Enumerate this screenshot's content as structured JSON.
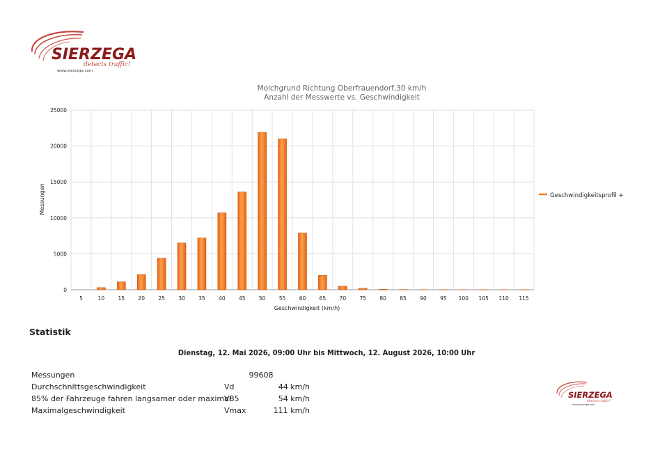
{
  "brand": {
    "name": "SIERZEGA",
    "tagline": "detects traffic!",
    "url": "www.sierzega.com",
    "color_dark": "#8b1a1a",
    "color_light": "#c4483c"
  },
  "chart_data": {
    "type": "bar",
    "title": "Molchgrund Richtung Oberfrauendorf,30 km/h",
    "subtitle": "Anzahl der Messwerte vs. Geschwindigkeit",
    "xlabel": "Geschwindigkeit (km/h)",
    "ylabel": "Messungen",
    "categories": [
      "5",
      "10",
      "15",
      "20",
      "25",
      "30",
      "35",
      "40",
      "45",
      "50",
      "55",
      "60",
      "65",
      "70",
      "75",
      "80",
      "85",
      "90",
      "95",
      "100",
      "105",
      "110",
      "115"
    ],
    "series": [
      {
        "name": "Geschwindigkeitsprofil +",
        "color": "#f47a20",
        "values": [
          0,
          300,
          1100,
          2100,
          4400,
          6500,
          7200,
          10700,
          13600,
          21900,
          21000,
          7900,
          2000,
          500,
          200,
          60,
          30,
          20,
          15,
          10,
          10,
          5,
          5
        ]
      }
    ],
    "ylim": [
      0,
      25000
    ],
    "yticks": [
      0,
      5000,
      10000,
      15000,
      20000,
      25000
    ],
    "grid": true,
    "legend": "right"
  },
  "statistik": {
    "heading": "Statistik",
    "period": "Dienstag, 12. Mai 2026, 09:00 Uhr bis Mittwoch, 12. August 2026, 10:00 Uhr",
    "rows": [
      {
        "label": "Messungen",
        "symbol": "",
        "value": "99608"
      },
      {
        "label": "Durchschnittsgeschwindigkeit",
        "symbol": "Vd",
        "value": "44 km/h"
      },
      {
        "label": "85% der Fahrzeuge fahren langsamer oder maximal",
        "symbol": "V85",
        "value": "54 km/h"
      },
      {
        "label": "Maximalgeschwindigkeit",
        "symbol": "Vmax",
        "value": "111 km/h"
      }
    ]
  }
}
